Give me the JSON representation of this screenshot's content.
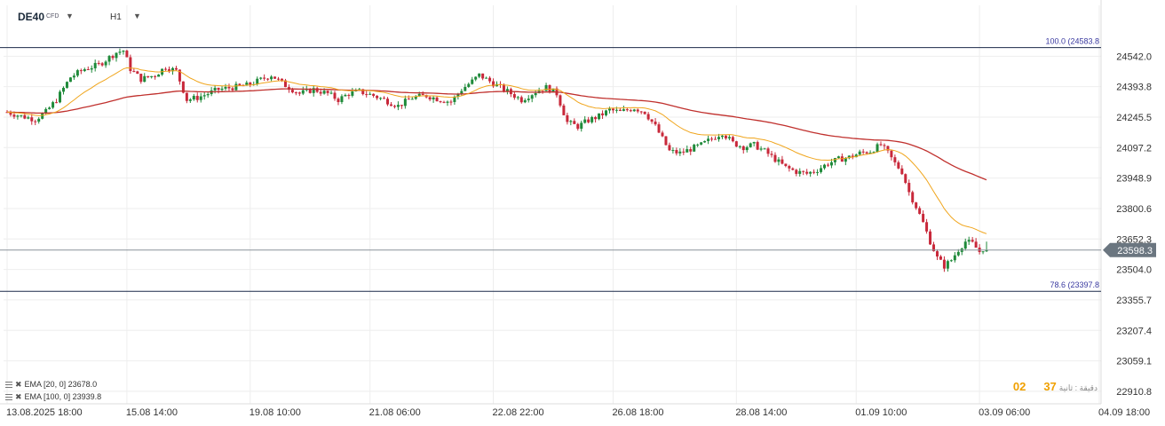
{
  "header": {
    "symbol": "DE40",
    "symbol_type": "CFD",
    "timeframe": "H1"
  },
  "indicators": [
    {
      "label": "EMA  [20,  0]  23678.0",
      "color": "#f0a51c"
    },
    {
      "label": "EMA  [100,  0]  23939.8",
      "color": "#c0302d"
    }
  ],
  "countdown": {
    "mins": "02",
    "secs": "37",
    "label": "دقيقة : ثانية"
  },
  "colors": {
    "up": "#1f8a3a",
    "down": "#c8283a",
    "ema20": "#f0a51c",
    "ema100": "#c0302d",
    "fib": "#1b2a4a",
    "price_tag": "#6b7680",
    "axis_text": "#333333"
  },
  "chart_data": {
    "type": "candlestick",
    "instrument": "DE40",
    "timeframe": "H1",
    "y_range": [
      22850,
      24660
    ],
    "y_ticks": [
      24542.0,
      24393.8,
      24245.5,
      24097.2,
      23948.9,
      23800.6,
      23652.3,
      23504.0,
      23355.7,
      23207.4,
      23059.1,
      22910.8
    ],
    "x_labels": [
      "13.08.2025  18:00",
      "15.08  14:00",
      "19.08  10:00",
      "21.08  06:00",
      "22.08  22:00",
      "26.08  18:00",
      "28.08  14:00",
      "01.09  10:00",
      "03.09  06:00",
      "04.09  18:00"
    ],
    "x_label_index": [
      0,
      34,
      69,
      103,
      138,
      172,
      207,
      241,
      276,
      310
    ],
    "current_price": 23598.3,
    "fib_levels": [
      {
        "label": "100.0 (24583.8",
        "value": 24583.8
      },
      {
        "label": "78.6 (23397.8",
        "value": 23397.8
      }
    ],
    "close_path": [
      [
        0,
        24270
      ],
      [
        4,
        24250
      ],
      [
        8,
        24235
      ],
      [
        11,
        24270
      ],
      [
        14,
        24330
      ],
      [
        18,
        24440
      ],
      [
        22,
        24480
      ],
      [
        26,
        24500
      ],
      [
        31,
        24560
      ],
      [
        33,
        24570
      ],
      [
        35,
        24480
      ],
      [
        38,
        24430
      ],
      [
        42,
        24450
      ],
      [
        45,
        24490
      ],
      [
        48,
        24470
      ],
      [
        51,
        24330
      ],
      [
        54,
        24340
      ],
      [
        57,
        24360
      ],
      [
        60,
        24380
      ],
      [
        64,
        24390
      ],
      [
        68,
        24400
      ],
      [
        71,
        24420
      ],
      [
        75,
        24450
      ],
      [
        79,
        24400
      ],
      [
        83,
        24360
      ],
      [
        87,
        24380
      ],
      [
        91,
        24360
      ],
      [
        94,
        24330
      ],
      [
        97,
        24360
      ],
      [
        100,
        24370
      ],
      [
        104,
        24350
      ],
      [
        107,
        24330
      ],
      [
        111,
        24300
      ],
      [
        115,
        24340
      ],
      [
        119,
        24350
      ],
      [
        123,
        24330
      ],
      [
        126,
        24320
      ],
      [
        129,
        24380
      ],
      [
        132,
        24420
      ],
      [
        134,
        24450
      ],
      [
        136,
        24430
      ],
      [
        140,
        24390
      ],
      [
        143,
        24360
      ],
      [
        146,
        24330
      ],
      [
        150,
        24370
      ],
      [
        153,
        24390
      ],
      [
        156,
        24360
      ],
      [
        159,
        24220
      ],
      [
        162,
        24200
      ],
      [
        165,
        24230
      ],
      [
        168,
        24250
      ],
      [
        171,
        24280
      ],
      [
        174,
        24270
      ],
      [
        178,
        24290
      ],
      [
        181,
        24270
      ],
      [
        184,
        24200
      ],
      [
        186,
        24140
      ],
      [
        188,
        24080
      ],
      [
        191,
        24070
      ],
      [
        194,
        24090
      ],
      [
        197,
        24110
      ],
      [
        200,
        24140
      ],
      [
        203,
        24170
      ],
      [
        206,
        24120
      ],
      [
        209,
        24100
      ],
      [
        212,
        24110
      ],
      [
        215,
        24080
      ],
      [
        218,
        24040
      ],
      [
        221,
        24000
      ],
      [
        224,
        23980
      ],
      [
        227,
        23970
      ],
      [
        230,
        23990
      ],
      [
        233,
        24020
      ],
      [
        236,
        24040
      ],
      [
        239,
        24050
      ],
      [
        242,
        24070
      ],
      [
        245,
        24080
      ],
      [
        248,
        24110
      ],
      [
        250,
        24070
      ],
      [
        252,
        24020
      ],
      [
        254,
        23980
      ],
      [
        256,
        23880
      ],
      [
        258,
        23810
      ],
      [
        260,
        23730
      ],
      [
        262,
        23640
      ],
      [
        264,
        23560
      ],
      [
        266,
        23520
      ],
      [
        268,
        23550
      ],
      [
        270,
        23600
      ],
      [
        272,
        23640
      ],
      [
        274,
        23630
      ],
      [
        276,
        23590
      ],
      [
        278,
        23620
      ]
    ],
    "candle_count": 279,
    "series": [
      {
        "name": "EMA [20, 0]",
        "last": 23678.0
      },
      {
        "name": "EMA [100, 0]",
        "last": 23939.8
      }
    ]
  }
}
